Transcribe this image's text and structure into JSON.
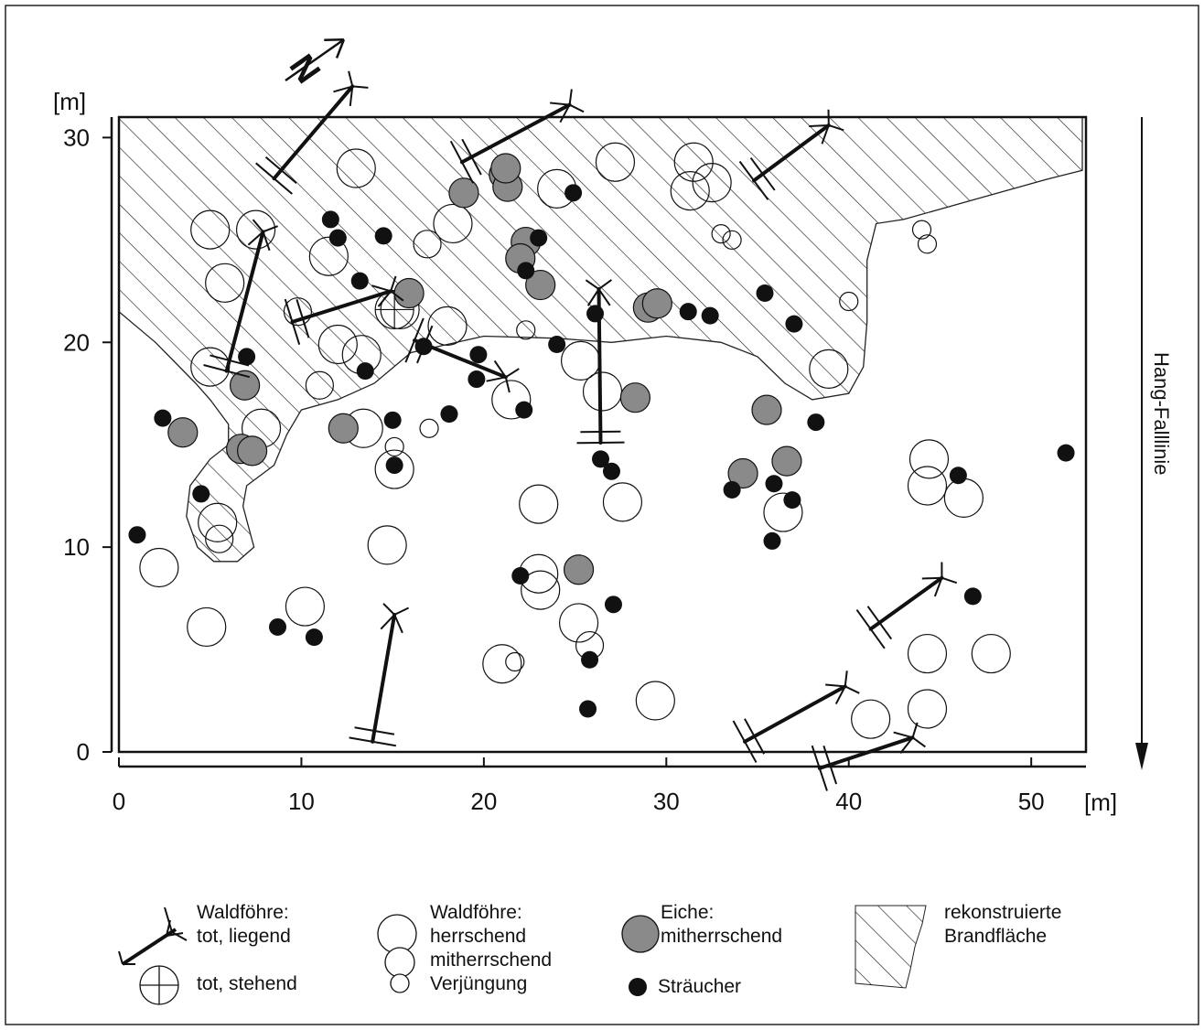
{
  "axes": {
    "x_unit": "[m]",
    "y_unit": "[m]",
    "x_ticks": [
      "0",
      "10",
      "20",
      "30",
      "40",
      "50"
    ],
    "y_ticks": [
      "0",
      "10",
      "20",
      "30"
    ],
    "x_range": [
      0,
      53
    ],
    "y_range": [
      0,
      31
    ]
  },
  "side_label": "Hang-Falllinie",
  "north_symbol": "N",
  "legend": {
    "pine_title": "Waldföhre:",
    "dead_lying": "tot, liegend",
    "dead_standing": "tot, stehend",
    "pine_title_2": "Waldföhre:",
    "dominant": "herrschend",
    "codominant": "mitherrschend",
    "regeneration": "Verjüngung",
    "oak_title": "Eiche:",
    "oak_codominant": "mitherrschend",
    "shrubs": "Sträucher",
    "burn_line1": "rekonstruierte",
    "burn_line2": "Brandfläche"
  },
  "burn_area_outline": [
    [
      0,
      31
    ],
    [
      52.8,
      31
    ],
    [
      52.8,
      28.4
    ],
    [
      51,
      28
    ],
    [
      47,
      27
    ],
    [
      43,
      26
    ],
    [
      41.5,
      25.8
    ],
    [
      41,
      24
    ],
    [
      41,
      21
    ],
    [
      40.8,
      18.8
    ],
    [
      40,
      17.5
    ],
    [
      38,
      17.2
    ],
    [
      36.5,
      18
    ],
    [
      35,
      19.3
    ],
    [
      33,
      20
    ],
    [
      30,
      20.3
    ],
    [
      27,
      20
    ],
    [
      24,
      20.2
    ],
    [
      20,
      20.3
    ],
    [
      16,
      19.5
    ],
    [
      14,
      18
    ],
    [
      12,
      17.2
    ],
    [
      10,
      16.7
    ],
    [
      9.2,
      15.5
    ],
    [
      8.5,
      14
    ],
    [
      7,
      13
    ],
    [
      6.8,
      12
    ],
    [
      7.4,
      10
    ],
    [
      6.5,
      9.3
    ],
    [
      5.2,
      9.3
    ],
    [
      4.3,
      10
    ],
    [
      3.7,
      11.5
    ],
    [
      3.9,
      13
    ],
    [
      5,
      14.3
    ],
    [
      6,
      15
    ],
    [
      6,
      16
    ],
    [
      5,
      17.2
    ],
    [
      4.2,
      18
    ],
    [
      2,
      20
    ],
    [
      0,
      21.5
    ]
  ],
  "trees": {
    "dominant": [
      [
        13,
        28.5
      ],
      [
        24,
        27.5
      ],
      [
        27.2,
        28.8
      ],
      [
        31.5,
        28.8
      ],
      [
        32.5,
        27.8
      ],
      [
        31.3,
        27.4
      ],
      [
        5,
        25.5
      ],
      [
        7.5,
        25.5
      ],
      [
        5.8,
        22.9
      ],
      [
        11.5,
        24.2
      ],
      [
        18.3,
        25.8
      ],
      [
        15.4,
        21.6
      ],
      [
        12,
        19.9
      ],
      [
        5,
        18.8
      ],
      [
        13.3,
        19.4
      ],
      [
        7.8,
        15.8
      ],
      [
        13.4,
        15.8
      ],
      [
        18,
        20.8
      ],
      [
        25.3,
        19.1
      ],
      [
        26.5,
        17.6
      ],
      [
        21.5,
        17.2
      ],
      [
        38.9,
        18.7
      ],
      [
        5.4,
        11.2
      ],
      [
        2.2,
        9
      ],
      [
        14.7,
        10.1
      ],
      [
        23,
        12.1
      ],
      [
        27.6,
        12.2
      ],
      [
        23,
        8.7
      ],
      [
        23.1,
        7.9
      ],
      [
        25.2,
        6.3
      ],
      [
        4.8,
        6.1
      ],
      [
        10.2,
        7.1
      ],
      [
        21,
        4.3
      ],
      [
        29.4,
        2.5
      ],
      [
        41.2,
        1.6
      ],
      [
        44.3,
        2.1
      ],
      [
        44.3,
        4.8
      ],
      [
        47.8,
        4.8
      ],
      [
        44.4,
        14.3
      ],
      [
        44.3,
        13
      ],
      [
        46.3,
        12.4
      ],
      [
        36.4,
        11.7
      ],
      [
        15.1,
        13.8
      ]
    ],
    "codominant": [
      [
        16.9,
        24.8
      ],
      [
        9.8,
        21.5
      ],
      [
        11,
        17.9
      ],
      [
        25.8,
        5.2
      ],
      [
        5.5,
        10.4
      ]
    ],
    "regeneration": [
      [
        33,
        25.3
      ],
      [
        33.6,
        25
      ],
      [
        44,
        25.5
      ],
      [
        44.3,
        24.8
      ],
      [
        40,
        22
      ],
      [
        22.3,
        20.6
      ],
      [
        17,
        15.8
      ],
      [
        15.1,
        14.9
      ],
      [
        21.7,
        4.4
      ]
    ],
    "dead_standing": [
      [
        15.1,
        21.6
      ]
    ]
  },
  "oaks": [
    [
      21.1,
      28.2
    ],
    [
      21.3,
      27.6
    ],
    [
      21.2,
      28.5
    ],
    [
      18.9,
      27.3
    ],
    [
      22.3,
      24.9
    ],
    [
      22,
      24.1
    ],
    [
      23.1,
      22.8
    ],
    [
      15.9,
      22.4
    ],
    [
      29,
      21.7
    ],
    [
      29.5,
      21.9
    ],
    [
      28.3,
      17.3
    ],
    [
      35.5,
      16.7
    ],
    [
      36.6,
      14.2
    ],
    [
      34.2,
      13.6
    ],
    [
      3.5,
      15.6
    ],
    [
      6.7,
      14.8
    ],
    [
      7.3,
      14.7
    ],
    [
      12.3,
      15.8
    ],
    [
      25.2,
      8.9
    ],
    [
      6.9,
      17.9
    ]
  ],
  "shrubs": [
    [
      11.6,
      26
    ],
    [
      12,
      25.1
    ],
    [
      14.5,
      25.2
    ],
    [
      24.9,
      27.3
    ],
    [
      23,
      25.1
    ],
    [
      22.3,
      23.5
    ],
    [
      13.2,
      23
    ],
    [
      26.1,
      21.4
    ],
    [
      31.2,
      21.5
    ],
    [
      32.4,
      21.3
    ],
    [
      35.4,
      22.4
    ],
    [
      37,
      20.9
    ],
    [
      24,
      19.9
    ],
    [
      16.7,
      19.8
    ],
    [
      19.7,
      19.4
    ],
    [
      7,
      19.3
    ],
    [
      13.5,
      18.6
    ],
    [
      19.6,
      18.2
    ],
    [
      22.2,
      16.7
    ],
    [
      15,
      16.2
    ],
    [
      18.1,
      16.5
    ],
    [
      2.4,
      16.3
    ],
    [
      38.2,
      16.1
    ],
    [
      26.4,
      14.3
    ],
    [
      27,
      13.7
    ],
    [
      33.6,
      12.8
    ],
    [
      35.9,
      13.1
    ],
    [
      36.9,
      12.3
    ],
    [
      15.1,
      14
    ],
    [
      4.5,
      12.6
    ],
    [
      1,
      10.6
    ],
    [
      35.8,
      10.3
    ],
    [
      46,
      13.5
    ],
    [
      51.9,
      14.6
    ],
    [
      22,
      8.6
    ],
    [
      27.1,
      7.2
    ],
    [
      8.7,
      6.1
    ],
    [
      10.7,
      5.6
    ],
    [
      25.8,
      4.5
    ],
    [
      25.7,
      2.1
    ],
    [
      46.8,
      7.6
    ]
  ],
  "logs": [
    [
      [
        8.5,
        28
      ],
      [
        12.8,
        32.5
      ]
    ],
    [
      [
        18.8,
        28.8
      ],
      [
        24.7,
        31.6
      ]
    ],
    [
      [
        34.8,
        27.9
      ],
      [
        38.9,
        30.6
      ]
    ],
    [
      [
        5.9,
        18.6
      ],
      [
        7.9,
        25.4
      ]
    ],
    [
      [
        9.5,
        21
      ],
      [
        14.9,
        22.5
      ]
    ],
    [
      [
        16.2,
        20.1
      ],
      [
        21.2,
        18.3
      ]
    ],
    [
      [
        26.4,
        15.1
      ],
      [
        26.3,
        22.6
      ]
    ],
    [
      [
        13.9,
        0.5
      ],
      [
        15.1,
        6.7
      ]
    ],
    [
      [
        34.3,
        0.5
      ],
      [
        39.8,
        3.2
      ]
    ],
    [
      [
        41.2,
        6
      ],
      [
        45.1,
        8.5
      ]
    ],
    [
      [
        38.4,
        -0.8
      ],
      [
        43.5,
        0.7
      ]
    ]
  ]
}
